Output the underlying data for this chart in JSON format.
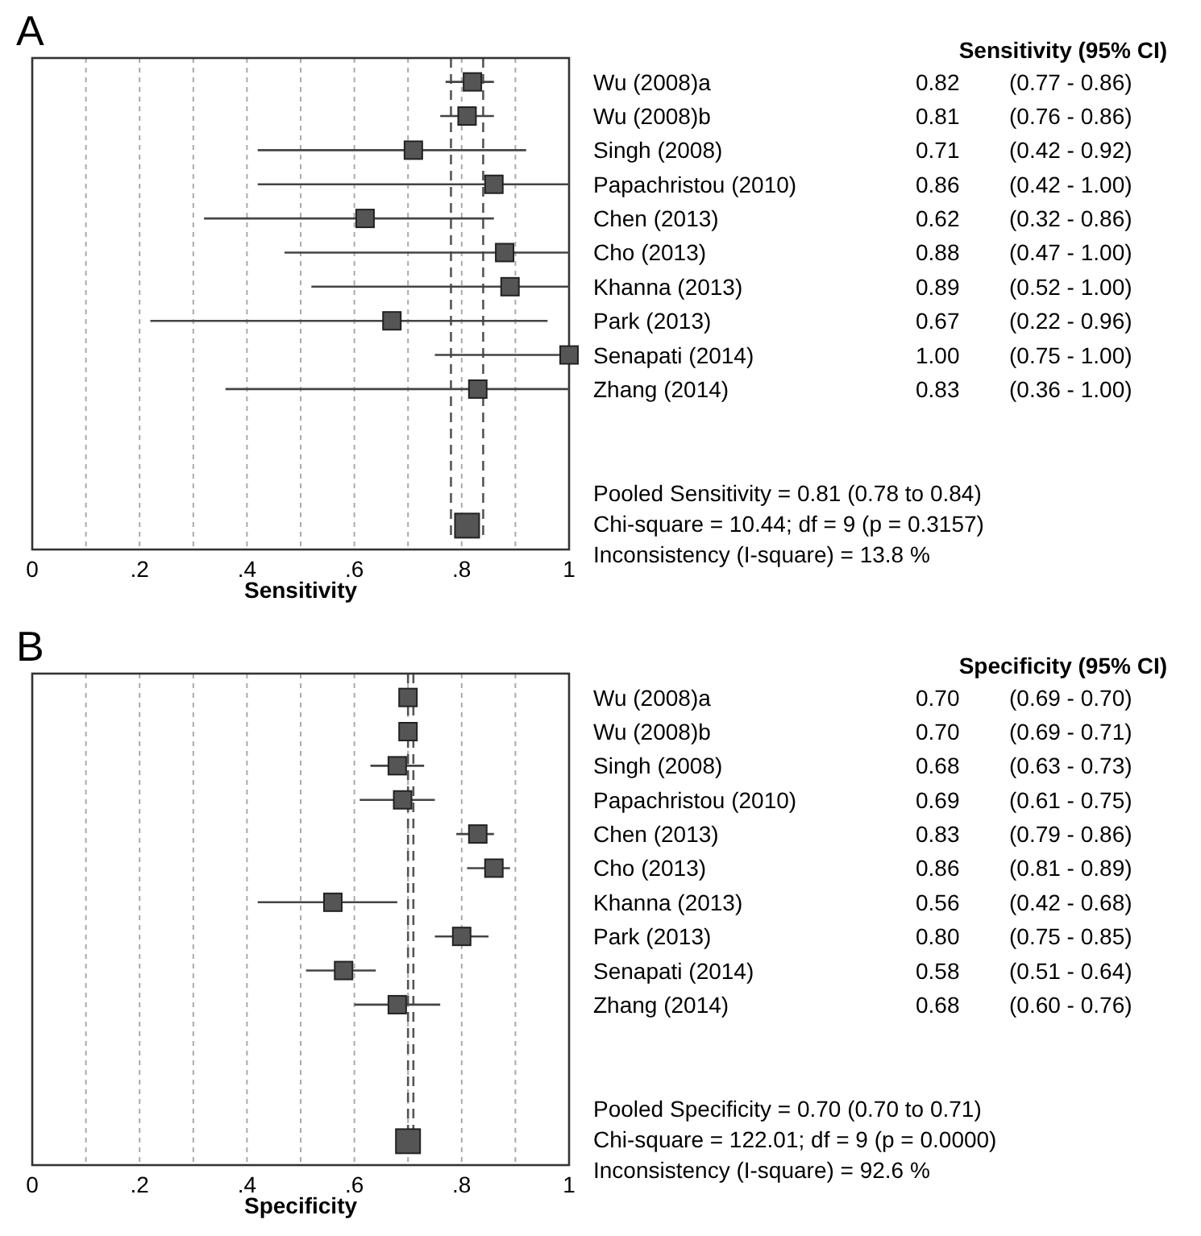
{
  "chart_data": [
    {
      "type": "scatter",
      "title": "A",
      "xlabel": "Sensitivity",
      "orientation": "horizontal",
      "categories": [
        "Wu (2008)a",
        "Wu (2008)b",
        "Singh (2008)",
        "Papachristou (2010)",
        "Chen (2013)",
        "Cho (2013)",
        "Khanna (2013)",
        "Park (2013)",
        "Senapati (2014)",
        "Zhang (2014)",
        null,
        null,
        null,
        null
      ],
      "xlim": [
        0,
        1
      ],
      "xticks": [
        {
          "value": 0,
          "label": "0"
        },
        {
          "value": 0.1,
          "label": null
        },
        {
          "value": 0.2,
          "label": ".2"
        },
        {
          "value": 0.3,
          "label": null
        },
        {
          "value": 0.4,
          "label": ".4"
        },
        {
          "value": 0.5,
          "label": null
        },
        {
          "value": 0.6,
          "label": ".6"
        },
        {
          "value": 0.7,
          "label": null
        },
        {
          "value": 0.8,
          "label": ".8"
        },
        {
          "value": 0.9,
          "label": null
        },
        {
          "value": 1,
          "label": "1"
        }
      ],
      "grid": "x",
      "marker": "square",
      "series": [
        {
          "color": "#555555",
          "values": [
            0.82,
            0.81,
            0.71,
            0.86,
            0.62,
            0.88,
            0.89,
            0.67,
            1.0,
            0.83,
            null,
            null,
            null,
            null
          ],
          "errors": [
            [
              0.77,
              0.86
            ],
            [
              0.76,
              0.86
            ],
            [
              0.42,
              0.92
            ],
            [
              0.42,
              1.0
            ],
            [
              0.32,
              0.86
            ],
            [
              0.47,
              1.0
            ],
            [
              0.52,
              1.0
            ],
            [
              0.22,
              0.96
            ],
            [
              0.75,
              1.0
            ],
            [
              0.36,
              1.0
            ],
            null,
            null,
            null,
            null
          ],
          "value_labels": [
            "0.82 (0.77 - 0.86)",
            "0.81 (0.76 - 0.86)",
            "0.71 (0.42 - 0.92)",
            "0.86 (0.42 - 1.00)",
            "0.62 (0.32 - 0.86)",
            "0.88 (0.47 - 1.00)",
            "0.89 (0.52 - 1.00)",
            "0.67 (0.22 - 0.96)",
            "1.00 (0.75 - 1.00)",
            "0.83 (0.36 - 1.00)",
            null,
            null,
            null,
            null
          ]
        },
        {
          "color": "#555555",
          "values": [
            null,
            null,
            null,
            null,
            null,
            null,
            null,
            null,
            null,
            null,
            null,
            null,
            null,
            0.81
          ]
        }
      ],
      "ref_lines": [
        {
          "axis": "x",
          "value": 0.78,
          "line_style": "dashed"
        },
        {
          "axis": "x",
          "value": 0.84,
          "line_style": "dashed"
        }
      ],
      "annotations": [
        "Sensitivity (95% CI)",
        "Pooled Sensitivity = 0.81 (0.78 to 0.84)",
        "Chi-square = 10.44; df =  9 (p = 0.3157)",
        "Inconsistency (I-square) = 13.8 %"
      ]
    },
    {
      "type": "scatter",
      "title": "B",
      "xlabel": "Specificity",
      "orientation": "horizontal",
      "categories": [
        "Wu (2008)a",
        "Wu (2008)b",
        "Singh (2008)",
        "Papachristou (2010)",
        "Chen (2013)",
        "Cho (2013)",
        "Khanna (2013)",
        "Park (2013)",
        "Senapati (2014)",
        "Zhang (2014)",
        null,
        null,
        null,
        null
      ],
      "xlim": [
        0,
        1
      ],
      "xticks": [
        {
          "value": 0,
          "label": "0"
        },
        {
          "value": 0.1,
          "label": null
        },
        {
          "value": 0.2,
          "label": ".2"
        },
        {
          "value": 0.3,
          "label": null
        },
        {
          "value": 0.4,
          "label": ".4"
        },
        {
          "value": 0.5,
          "label": null
        },
        {
          "value": 0.6,
          "label": ".6"
        },
        {
          "value": 0.7,
          "label": null
        },
        {
          "value": 0.8,
          "label": ".8"
        },
        {
          "value": 0.9,
          "label": null
        },
        {
          "value": 1,
          "label": "1"
        }
      ],
      "grid": "x",
      "marker": "square",
      "series": [
        {
          "color": "#555555",
          "values": [
            0.7,
            0.7,
            0.68,
            0.69,
            0.83,
            0.86,
            0.56,
            0.8,
            0.58,
            0.68,
            null,
            null,
            null,
            null
          ],
          "errors": [
            [
              0.69,
              0.7
            ],
            [
              0.69,
              0.71
            ],
            [
              0.63,
              0.73
            ],
            [
              0.61,
              0.75
            ],
            [
              0.79,
              0.86
            ],
            [
              0.81,
              0.89
            ],
            [
              0.42,
              0.68
            ],
            [
              0.75,
              0.85
            ],
            [
              0.51,
              0.64
            ],
            [
              0.6,
              0.76
            ],
            null,
            null,
            null,
            null
          ],
          "value_labels": [
            "0.70 (0.69 - 0.70)",
            "0.70 (0.69 - 0.71)",
            "0.68 (0.63 - 0.73)",
            "0.69 (0.61 - 0.75)",
            "0.83 (0.79 - 0.86)",
            "0.86 (0.81 - 0.89)",
            "0.56 (0.42 - 0.68)",
            "0.80 (0.75 - 0.85)",
            "0.58 (0.51 - 0.64)",
            "0.68 (0.60 - 0.76)",
            null,
            null,
            null,
            null
          ]
        },
        {
          "color": "#555555",
          "values": [
            null,
            null,
            null,
            null,
            null,
            null,
            null,
            null,
            null,
            null,
            null,
            null,
            null,
            0.7
          ]
        }
      ],
      "ref_lines": [
        {
          "axis": "x",
          "value": 0.7,
          "line_style": "dashed"
        },
        {
          "axis": "x",
          "value": 0.71,
          "line_style": "dashed"
        }
      ],
      "annotations": [
        "Specificity (95% CI)",
        "Pooled Specificity = 0.70 (0.70 to 0.71)",
        "Chi-square = 122.01; df =  9 (p = 0.0000)",
        "Inconsistency (I-square) = 92.6 %"
      ]
    }
  ]
}
